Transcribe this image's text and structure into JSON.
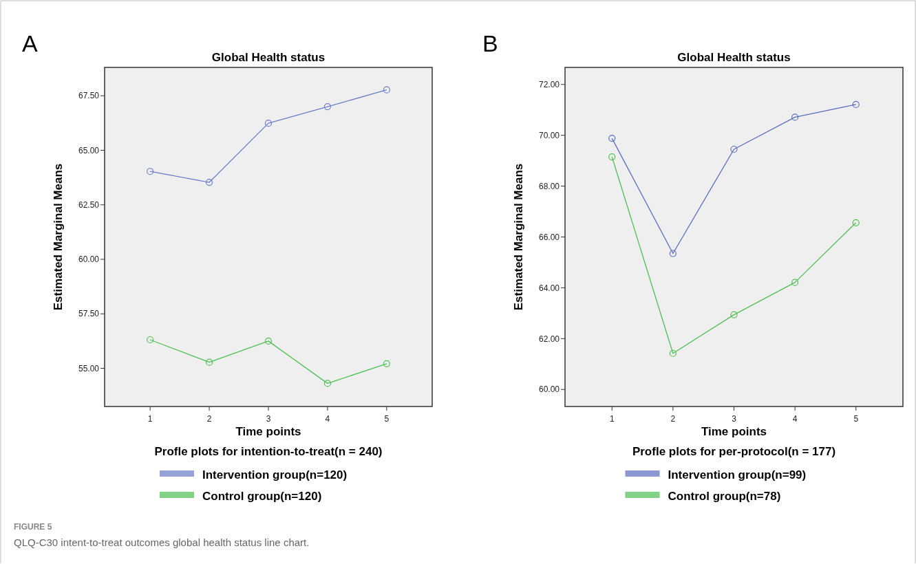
{
  "chart_data": [
    {
      "type": "line",
      "title": "Global Health status",
      "xlabel": "Time points",
      "ylabel": "Estimated Marginal Means",
      "subtitle": "Profle plots for intention-to-treat(n = 240)",
      "annotations": [
        "A",
        "FIGURE 5",
        "QLQ-C30 intent-to-treat outcomes global health status line chart."
      ],
      "x": [
        1,
        2,
        3,
        4,
        5
      ],
      "xlim": [
        0.23,
        5.77
      ],
      "xticks": [
        1,
        2,
        3,
        4,
        5
      ],
      "ylim": [
        53.25,
        68.8
      ],
      "yticks": [
        {
          "value": 55,
          "label": "55.00"
        },
        {
          "value": 57.5,
          "label": "57.50"
        },
        {
          "value": 60,
          "label": "60.00"
        },
        {
          "value": 62.5,
          "label": "62.50"
        },
        {
          "value": 65,
          "label": "65.00"
        },
        {
          "value": 67.5,
          "label": "67.50"
        }
      ],
      "marker": "circle",
      "legend": "bottom",
      "series": [
        {
          "name": "Intervention group(n=120)",
          "color": "#6a7cc8",
          "values": [
            64.03,
            63.53,
            66.24,
            67.0,
            67.77
          ]
        },
        {
          "name": "Control group(n=120)",
          "color": "#4cbf52",
          "values": [
            56.31,
            55.28,
            56.25,
            54.31,
            55.21
          ]
        }
      ]
    },
    {
      "type": "line",
      "title": "Global Health status",
      "xlabel": "Time points",
      "ylabel": "Estimated Marginal Means",
      "subtitle": "Profle plots for per-protocol(n = 177)",
      "annotations": [
        "B"
      ],
      "x": [
        1,
        2,
        3,
        4,
        5
      ],
      "xlim": [
        0.23,
        5.77
      ],
      "xticks": [
        1,
        2,
        3,
        4,
        5
      ],
      "ylim": [
        59.33,
        72.67
      ],
      "yticks": [
        {
          "value": 60,
          "label": "60.00"
        },
        {
          "value": 62,
          "label": "62.00"
        },
        {
          "value": 64,
          "label": "64.00"
        },
        {
          "value": 66,
          "label": "66.00"
        },
        {
          "value": 68,
          "label": "68.00"
        },
        {
          "value": 70,
          "label": "70.00"
        },
        {
          "value": 72,
          "label": "72.00"
        }
      ],
      "marker": "circle",
      "legend": "bottom",
      "series": [
        {
          "name": "Intervention group(n=99)",
          "color": "#5a6cc0",
          "values": [
            69.88,
            65.35,
            69.45,
            70.71,
            71.21
          ]
        },
        {
          "name": "Control group(n=78)",
          "color": "#4cbf52",
          "values": [
            69.15,
            61.42,
            62.94,
            64.21,
            66.56
          ]
        }
      ]
    }
  ]
}
